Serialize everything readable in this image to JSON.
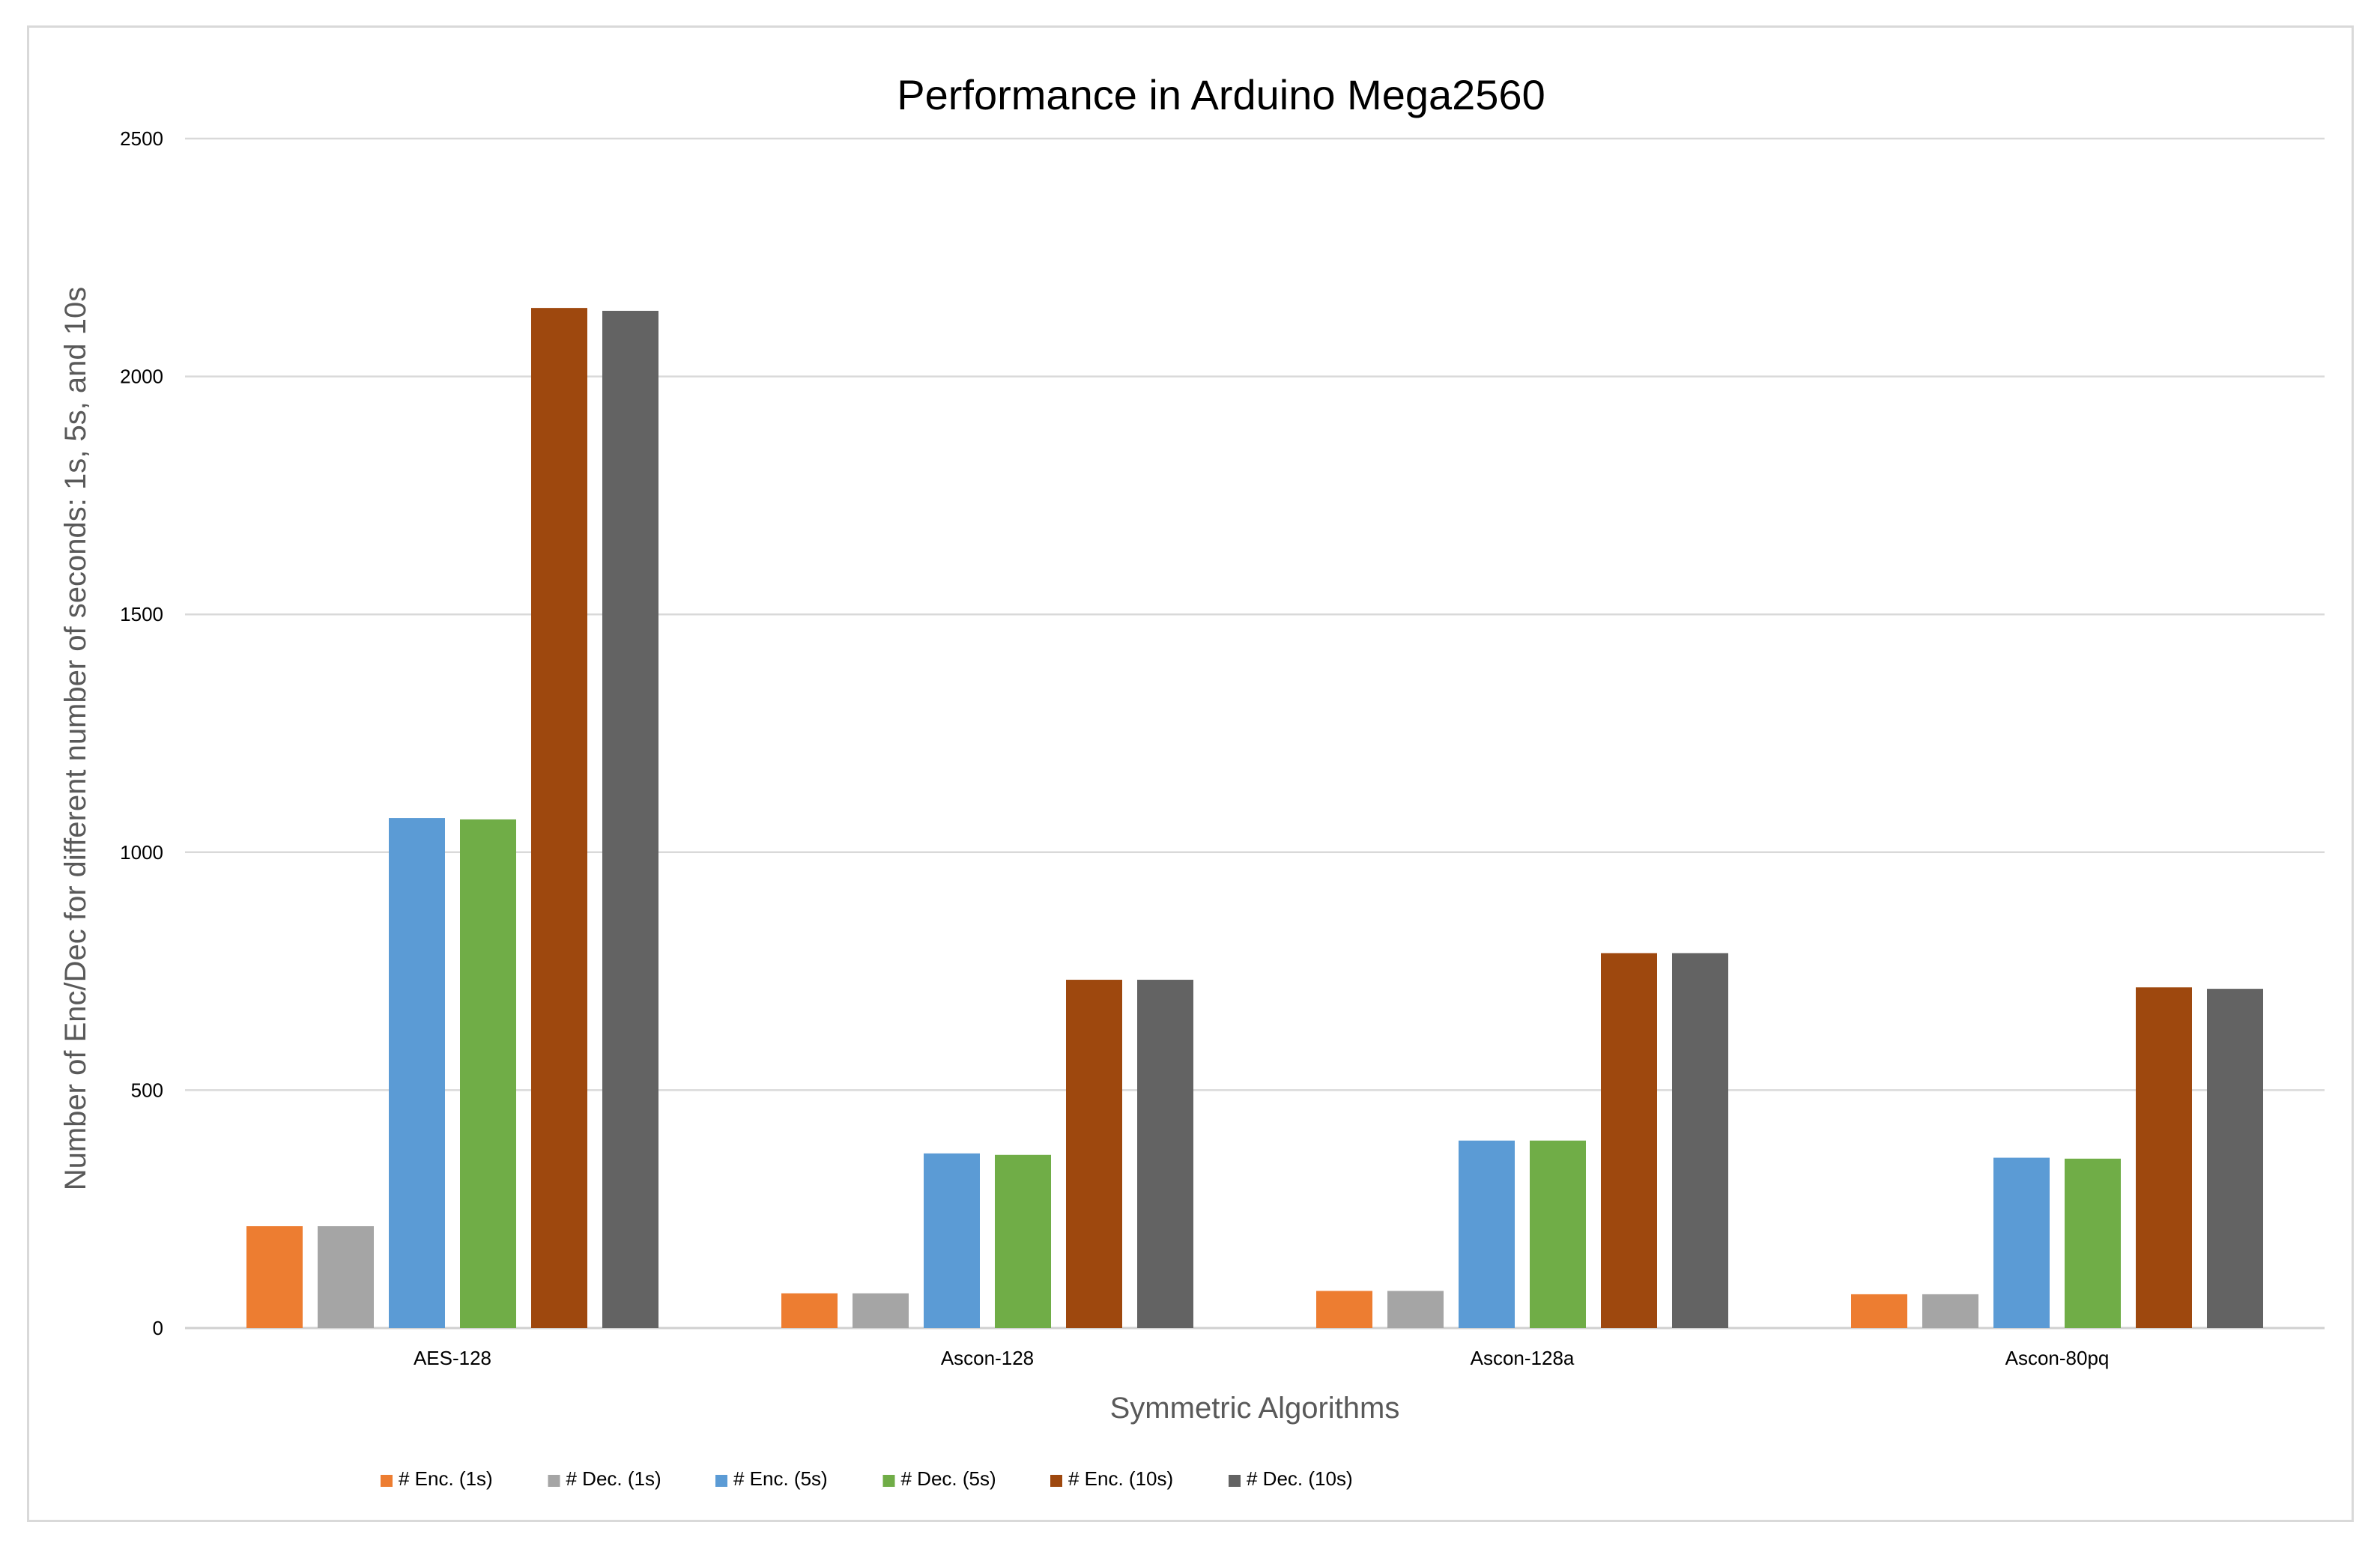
{
  "chart_data": {
    "type": "bar",
    "title": "Performance in Arduino Mega2560",
    "xlabel": "Symmetric Algorithms",
    "ylabel": "Number of Enc/Dec  for different number of seconds: 1s, 5s, and 10s",
    "categories": [
      "AES-128",
      "Ascon-128",
      "Ascon-128a",
      "Ascon-80pq"
    ],
    "ylim": [
      0,
      2500
    ],
    "yticks": [
      "0",
      "500",
      "1000",
      "1500",
      "2000",
      "2500"
    ],
    "grid": true,
    "legend_position": "bottom",
    "series": [
      {
        "name": "# Enc. (1s)",
        "color": "#ED7D31",
        "values": [
          214,
          73,
          78,
          71
        ]
      },
      {
        "name": "# Dec. (1s)",
        "color": "#A5A5A5",
        "values": [
          214,
          73,
          78,
          71
        ]
      },
      {
        "name": "# Enc. (5s)",
        "color": "#5B9BD5",
        "values": [
          1072,
          367,
          394,
          358
        ]
      },
      {
        "name": "# Dec. (5s)",
        "color": "#70AD47",
        "values": [
          1069,
          364,
          394,
          356
        ]
      },
      {
        "name": "# Enc. (10s)",
        "color": "#9E480E",
        "values": [
          2144,
          732,
          788,
          716
        ]
      },
      {
        "name": "# Dec. (10s)",
        "color": "#636363",
        "values": [
          2138,
          732,
          788,
          713
        ]
      }
    ]
  }
}
